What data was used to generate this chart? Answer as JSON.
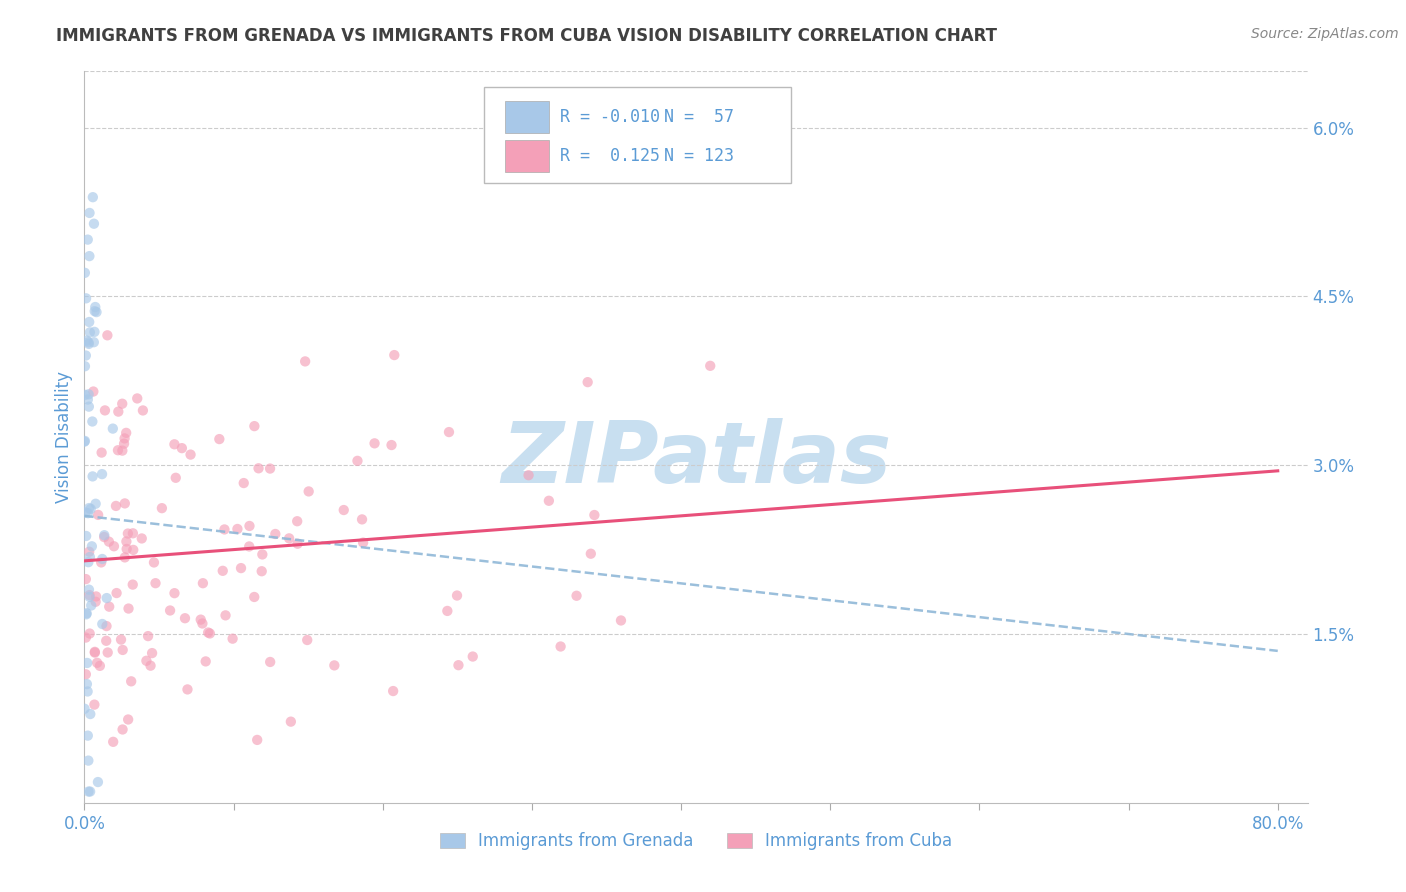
{
  "title": "IMMIGRANTS FROM GRENADA VS IMMIGRANTS FROM CUBA VISION DISABILITY CORRELATION CHART",
  "source": "Source: ZipAtlas.com",
  "ylabel": "Vision Disability",
  "watermark": "ZIPatlas",
  "series": [
    {
      "label": "Immigrants from Grenada",
      "R": -0.01,
      "N": 57,
      "color_dot": "#a8c8e8",
      "color_line": "#90b8d8",
      "line_style": "--"
    },
    {
      "label": "Immigrants from Cuba",
      "R": 0.125,
      "N": 123,
      "color_dot": "#f4a0b8",
      "color_line": "#e8507a",
      "line_style": "-"
    }
  ],
  "xlim": [
    0.0,
    0.82
  ],
  "ylim": [
    0.0,
    0.065
  ],
  "right_yticks": [
    0.0,
    0.015,
    0.03,
    0.045,
    0.06
  ],
  "right_yticklabels": [
    "",
    "1.5%",
    "3.0%",
    "4.5%",
    "6.0%"
  ],
  "grid_color": "#cccccc",
  "background_color": "#ffffff",
  "title_color": "#404040",
  "axis_color": "#5b9bd5",
  "watermark_color": "#c8dff0",
  "legend_color": "#5b9bd5",
  "dot_size": 55,
  "dot_alpha": 0.65,
  "trendline_grenada_x0": 0.0,
  "trendline_grenada_y0": 0.0255,
  "trendline_grenada_x1": 0.8,
  "trendline_grenada_y1": 0.0135,
  "trendline_cuba_x0": 0.0,
  "trendline_cuba_y0": 0.0215,
  "trendline_cuba_x1": 0.8,
  "trendline_cuba_y1": 0.0295
}
